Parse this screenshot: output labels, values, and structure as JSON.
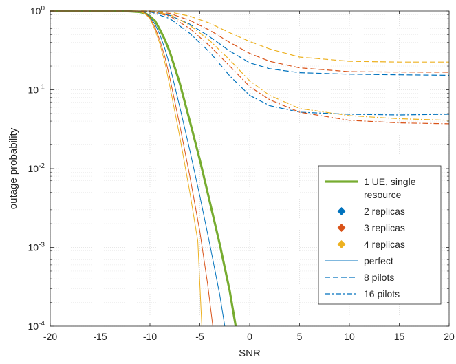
{
  "chart_data": {
    "type": "line",
    "title": "",
    "xlabel": "SNR",
    "ylabel": "outage probability",
    "xlim": [
      -20,
      20
    ],
    "ylim": [
      0.0001,
      1
    ],
    "yscale": "log",
    "grid": true,
    "minor_grid": true,
    "x_ticks": [
      -20,
      -15,
      -10,
      -5,
      0,
      5,
      10,
      15,
      20
    ],
    "x_tick_labels": [
      "-20",
      "-15",
      "-10",
      "-5",
      "0",
      "5",
      "10",
      "15",
      "20"
    ],
    "y_ticks": [
      0.0001,
      0.001,
      0.01,
      0.1,
      1
    ],
    "y_tick_labels": [
      {
        "base": "10",
        "exp": "-4"
      },
      {
        "base": "10",
        "exp": "-3"
      },
      {
        "base": "10",
        "exp": "-2"
      },
      {
        "base": "10",
        "exp": "-1"
      },
      {
        "base": "10",
        "exp": "0"
      }
    ],
    "legend": {
      "placement": "lower-right",
      "entries": [
        {
          "label_lines": [
            "1 UE, single",
            "resource"
          ],
          "style": "line",
          "color": "#77AC30",
          "dash": "solid",
          "width": 3.2
        },
        {
          "label_lines": [
            "2 replicas"
          ],
          "style": "marker",
          "color": "#0072BD"
        },
        {
          "label_lines": [
            "3 replicas"
          ],
          "style": "marker",
          "color": "#D95319"
        },
        {
          "label_lines": [
            "4 replicas"
          ],
          "style": "marker",
          "color": "#EDB120"
        },
        {
          "label_lines": [
            "perfect"
          ],
          "style": "line",
          "color": "#0072BD",
          "dash": "solid",
          "width": 1
        },
        {
          "label_lines": [
            "8 pilots"
          ],
          "style": "line",
          "color": "#0072BD",
          "dash": "dashed",
          "width": 1.2
        },
        {
          "label_lines": [
            "16 pilots"
          ],
          "style": "line",
          "color": "#0072BD",
          "dash": "dashdot",
          "width": 1.2
        }
      ]
    },
    "series": [
      {
        "color": "#77AC30",
        "dash": "solid",
        "width": 3.2,
        "x": [
          -20,
          -13,
          -12,
          -11,
          -10.5,
          -10,
          -9.5,
          -9,
          -8.5,
          -8,
          -7,
          -6,
          -5,
          -4,
          -3,
          -2,
          -1.4
        ],
        "y": [
          1,
          1,
          0.99,
          0.97,
          0.94,
          0.86,
          0.75,
          0.58,
          0.43,
          0.3,
          0.12,
          0.04,
          0.013,
          0.0038,
          0.0011,
          0.00028,
          0.0001
        ]
      },
      {
        "color": "#0072BD",
        "dash": "solid",
        "width": 1,
        "x": [
          -20,
          -12,
          -11,
          -10.5,
          -10,
          -9.5,
          -9,
          -8.5,
          -8,
          -7,
          -6,
          -5,
          -4,
          -3,
          -2.5
        ],
        "y": [
          1,
          1,
          0.98,
          0.95,
          0.84,
          0.68,
          0.5,
          0.33,
          0.2,
          0.06,
          0.017,
          0.0045,
          0.0011,
          0.00025,
          0.0001
        ]
      },
      {
        "color": "#D95319",
        "dash": "solid",
        "width": 1,
        "x": [
          -20,
          -12,
          -11,
          -10.5,
          -10,
          -9.5,
          -9,
          -8.5,
          -8,
          -7,
          -6,
          -5,
          -4.2,
          -3.7
        ],
        "y": [
          1,
          1,
          0.98,
          0.94,
          0.82,
          0.62,
          0.42,
          0.26,
          0.14,
          0.035,
          0.008,
          0.0016,
          0.00033,
          0.0001
        ]
      },
      {
        "color": "#EDB120",
        "dash": "solid",
        "width": 1,
        "x": [
          -20,
          -12,
          -11,
          -10.5,
          -10,
          -9.5,
          -9,
          -8.5,
          -8,
          -7,
          -6,
          -5.2,
          -4.8
        ],
        "y": [
          1,
          1,
          0.98,
          0.93,
          0.8,
          0.58,
          0.38,
          0.22,
          0.11,
          0.025,
          0.005,
          0.0012,
          0.0001
        ]
      },
      {
        "color": "#0072BD",
        "dash": "dashed",
        "width": 1.2,
        "x": [
          -20,
          -12,
          -10,
          -8,
          -6,
          -4,
          -2,
          0,
          2,
          5,
          10,
          15,
          20
        ],
        "y": [
          1,
          1,
          0.99,
          0.88,
          0.68,
          0.47,
          0.31,
          0.22,
          0.185,
          0.165,
          0.158,
          0.155,
          0.153
        ]
      },
      {
        "color": "#D95319",
        "dash": "dashed",
        "width": 1.2,
        "x": [
          -20,
          -12,
          -10,
          -8,
          -6,
          -4,
          -2,
          0,
          2,
          5,
          10,
          15,
          20
        ],
        "y": [
          1,
          1,
          1,
          0.93,
          0.76,
          0.57,
          0.4,
          0.29,
          0.23,
          0.19,
          0.17,
          0.168,
          0.167
        ]
      },
      {
        "color": "#EDB120",
        "dash": "dashed",
        "width": 1.2,
        "x": [
          -20,
          -12,
          -10,
          -8,
          -6,
          -4,
          -2,
          0,
          2,
          5,
          10,
          15,
          20
        ],
        "y": [
          1,
          1,
          1,
          0.97,
          0.86,
          0.7,
          0.53,
          0.41,
          0.33,
          0.26,
          0.23,
          0.225,
          0.225
        ]
      },
      {
        "color": "#0072BD",
        "dash": "dashdot",
        "width": 1.2,
        "x": [
          -20,
          -12,
          -10,
          -8,
          -6,
          -4,
          -2,
          0,
          2,
          5,
          10,
          15,
          20
        ],
        "y": [
          1,
          1,
          0.98,
          0.8,
          0.52,
          0.3,
          0.15,
          0.085,
          0.063,
          0.052,
          0.049,
          0.048,
          0.049
        ]
      },
      {
        "color": "#D95319",
        "dash": "dashdot",
        "width": 1.2,
        "x": [
          -20,
          -12,
          -10,
          -8,
          -6,
          -4,
          -2,
          0,
          2,
          5,
          10,
          15,
          20
        ],
        "y": [
          1,
          1,
          0.99,
          0.86,
          0.6,
          0.36,
          0.2,
          0.11,
          0.075,
          0.052,
          0.041,
          0.038,
          0.037
        ]
      },
      {
        "color": "#EDB120",
        "dash": "dashdot",
        "width": 1.2,
        "x": [
          -20,
          -12,
          -10,
          -8,
          -6,
          -4,
          -2,
          0,
          2,
          5,
          10,
          15,
          20
        ],
        "y": [
          1,
          1,
          1,
          0.9,
          0.66,
          0.42,
          0.24,
          0.13,
          0.085,
          0.058,
          0.047,
          0.043,
          0.041
        ]
      }
    ]
  }
}
